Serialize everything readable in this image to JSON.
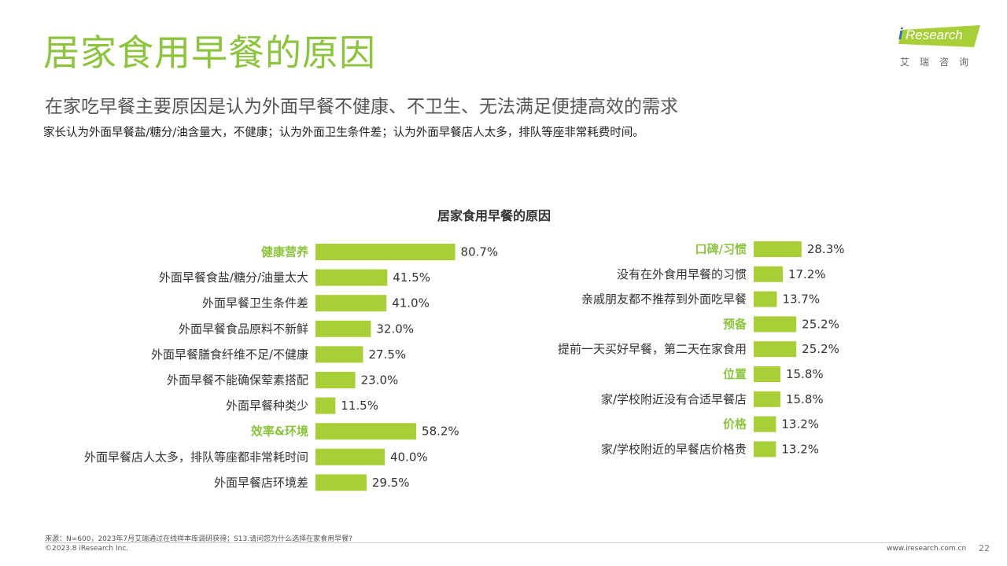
{
  "header": {
    "title": "居家食用早餐的原因",
    "subtitle": "在家吃早餐主要原因是认为外面早餐不健康、不卫生、无法满足便捷高效的需求",
    "description": "家长认为外面早餐盐/糖分/油含量大，不健康；认为外面卫生条件差；认为外面早餐店人太多，排队等座非常耗费时间。"
  },
  "logo": {
    "word_i": "i",
    "word_rest": "Research",
    "cn": "艾瑞咨询",
    "color": "#a8cf38"
  },
  "chart_data": {
    "type": "bar",
    "orientation": "horizontal",
    "title": "居家食用早餐的原因",
    "bar_color": "#a8cf38",
    "group_label_color": "#8cc43e",
    "xlim": [
      0,
      100
    ],
    "panels": [
      {
        "items": [
          {
            "label": "健康营养",
            "value": 80.7,
            "display": "80.7%",
            "group": true
          },
          {
            "label": "外面早餐食盐/糖分/油量太大",
            "value": 41.5,
            "display": "41.5%",
            "group": false
          },
          {
            "label": "外面早餐卫生条件差",
            "value": 41.0,
            "display": "41.0%",
            "group": false
          },
          {
            "label": "外面早餐食品原料不新鲜",
            "value": 32.0,
            "display": "32.0%",
            "group": false
          },
          {
            "label": "外面早餐膳食纤维不足/不健康",
            "value": 27.5,
            "display": "27.5%",
            "group": false
          },
          {
            "label": "外面早餐不能确保荤素搭配",
            "value": 23.0,
            "display": "23.0%",
            "group": false
          },
          {
            "label": "外面早餐种类少",
            "value": 11.5,
            "display": "11.5%",
            "group": false
          },
          {
            "label": "效率&环境",
            "value": 58.2,
            "display": "58.2%",
            "group": true
          },
          {
            "label": "外面早餐店人太多，排队等座都非常耗时间",
            "value": 40.0,
            "display": "40.0%",
            "group": false
          },
          {
            "label": "外面早餐店环境差",
            "value": 29.5,
            "display": "29.5%",
            "group": false
          }
        ]
      },
      {
        "items": [
          {
            "label": "口碑/习惯",
            "value": 28.3,
            "display": "28.3%",
            "group": true
          },
          {
            "label": "没有在外食用早餐的习惯",
            "value": 17.2,
            "display": "17.2%",
            "group": false
          },
          {
            "label": "亲戚朋友都不推荐到外面吃早餐",
            "value": 13.7,
            "display": "13.7%",
            "group": false
          },
          {
            "label": "预备",
            "value": 25.2,
            "display": "25.2%",
            "group": true
          },
          {
            "label": "提前一天买好早餐，第二天在家食用",
            "value": 25.2,
            "display": "25.2%",
            "group": false
          },
          {
            "label": "位置",
            "value": 15.8,
            "display": "15.8%",
            "group": true
          },
          {
            "label": "家/学校附近没有合适早餐店",
            "value": 15.8,
            "display": "15.8%",
            "group": false
          },
          {
            "label": "价格",
            "value": 13.2,
            "display": "13.2%",
            "group": true
          },
          {
            "label": "家/学校附近的早餐店价格贵",
            "value": 13.2,
            "display": "13.2%",
            "group": false
          }
        ]
      }
    ]
  },
  "footer": {
    "source": "来源：N=600，2023年7月艾瑞通过在线样本库调研获得；S13.请问您为什么选择在家食用早餐?",
    "copyright": "©2023.8 iResearch Inc.",
    "website": "www.iresearch.com.cn",
    "page_number": "22"
  }
}
